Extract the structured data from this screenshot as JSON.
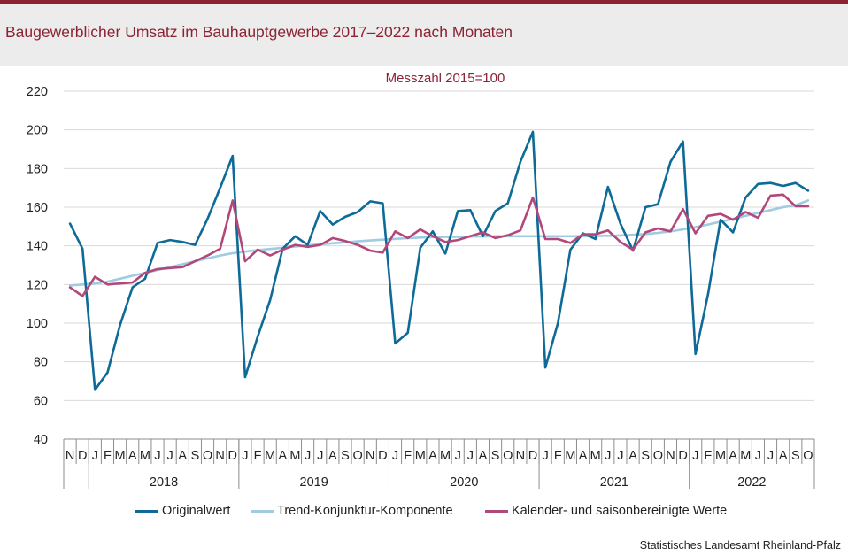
{
  "title": "Baugewerblicher Umsatz im Bauhauptgewerbe 2017–2022 nach Monaten",
  "source": "Statistisches Landesamt Rheinland-Pfalz",
  "colors": {
    "brand": "#8c2333",
    "original": "#0e6a97",
    "trend": "#9fcbe3",
    "seasonal": "#b2477a"
  },
  "chart_data": {
    "type": "line",
    "subtitle": "Messzahl 2015=100",
    "ylim": [
      40,
      220
    ],
    "yticks": [
      40,
      60,
      80,
      100,
      120,
      140,
      160,
      180,
      200,
      220
    ],
    "grid": true,
    "month_labels": [
      "N",
      "D",
      "J",
      "F",
      "M",
      "A",
      "M",
      "J",
      "J",
      "A",
      "S",
      "O",
      "N",
      "D",
      "J",
      "F",
      "M",
      "A",
      "M",
      "J",
      "J",
      "A",
      "S",
      "O",
      "N",
      "D",
      "J",
      "F",
      "M",
      "A",
      "M",
      "J",
      "J",
      "A",
      "S",
      "O",
      "N",
      "D",
      "J",
      "F",
      "M",
      "A",
      "M",
      "J",
      "J",
      "A",
      "S",
      "O",
      "N",
      "D",
      "J",
      "F",
      "M",
      "A",
      "M",
      "J",
      "J",
      "A",
      "S",
      "O"
    ],
    "year_labels": [
      "2018",
      "2019",
      "2020",
      "2021",
      "2022"
    ],
    "legend_position": "bottom",
    "series": [
      {
        "name": "Originalwert",
        "values": [
          151.5,
          138.5,
          65.5,
          74.5,
          99,
          118.5,
          123,
          141.5,
          143,
          142,
          140.5,
          154,
          170,
          186.5,
          72,
          93,
          112,
          138.5,
          145,
          140.5,
          158,
          151,
          155,
          157.5,
          163,
          162,
          89.5,
          95,
          139,
          147.5,
          136,
          158,
          158.5,
          145,
          158,
          162,
          183.5,
          199,
          77,
          100,
          138,
          146.5,
          143.5,
          170.5,
          151.5,
          137.5,
          160,
          161.5,
          183.5,
          194,
          84,
          115,
          153.5,
          147,
          165,
          172,
          172.5,
          171,
          172.5,
          168.5
        ]
      },
      {
        "name": "Trend-Konjunktur-Komponente",
        "values": [
          119.5,
          120,
          120.5,
          121.5,
          123,
          124.5,
          126,
          127.5,
          129,
          130.5,
          132,
          133.5,
          135,
          136.2,
          137,
          137.8,
          138.4,
          139,
          139.6,
          140.2,
          140.8,
          141.3,
          141.8,
          142.3,
          142.8,
          143.2,
          143.6,
          144,
          144.3,
          144.5,
          144.6,
          144.7,
          144.8,
          144.9,
          145,
          145,
          145,
          145,
          145,
          145,
          145,
          145,
          145.1,
          145.2,
          145.4,
          145.7,
          146.1,
          146.7,
          147.5,
          148.5,
          149.7,
          151,
          152.5,
          154,
          155.5,
          157,
          158.5,
          160,
          161,
          163.5
        ]
      },
      {
        "name": "Kalender- und saisonbereinigte Werte",
        "values": [
          118.5,
          114,
          124,
          120,
          120.5,
          121,
          126,
          128,
          128.5,
          129,
          132,
          135,
          138.5,
          163.5,
          132,
          138,
          135,
          138,
          140.5,
          139.5,
          140.5,
          144,
          142.5,
          140.5,
          137.5,
          136.5,
          147.5,
          144,
          148.5,
          145,
          142,
          143,
          145,
          147,
          144,
          145.5,
          148,
          165,
          143.5,
          143.5,
          141.5,
          146,
          146,
          148,
          142,
          138,
          147,
          149,
          147.5,
          159,
          146.5,
          155.5,
          156.5,
          153.5,
          157.5,
          154.5,
          166,
          166.5,
          160.5,
          160.5
        ]
      }
    ]
  }
}
